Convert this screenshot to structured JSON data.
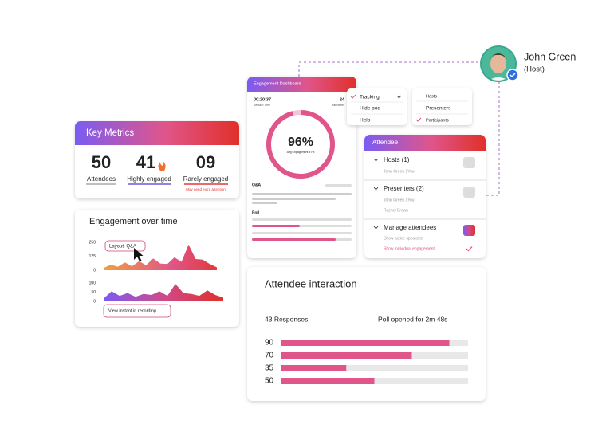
{
  "profile": {
    "name": "John Green",
    "role": "(Host)"
  },
  "key_metrics": {
    "title": "Key Metrics",
    "items": [
      {
        "value": "50",
        "label": "Attendees"
      },
      {
        "value": "41",
        "label": "Highly engaged"
      },
      {
        "value": "09",
        "label": "Rarely engaged",
        "note": "May need extra attention"
      }
    ]
  },
  "engagement_over_time": {
    "title": "Engagement over time",
    "chart_top": {
      "type": "area",
      "ylim": [
        0,
        250
      ],
      "yticks": [
        0,
        125,
        250
      ],
      "values": [
        20,
        50,
        30,
        70,
        35,
        80,
        45,
        105,
        60,
        55,
        115,
        75,
        230,
        100,
        95,
        55,
        25
      ],
      "tooltip": "Layout: Q&A"
    },
    "chart_bottom": {
      "type": "area",
      "ylim": [
        0,
        100
      ],
      "yticks": [
        0,
        50,
        100
      ],
      "values": [
        15,
        55,
        30,
        45,
        25,
        40,
        35,
        55,
        30,
        95,
        45,
        40,
        30,
        60,
        35,
        20
      ],
      "button": "View instant in recording"
    }
  },
  "dashboard": {
    "title": "Engagement Dashboard",
    "session_time": "00:20:37",
    "session_label": "Session Time",
    "attendees": "24",
    "attendees_label": "Attendees",
    "percent": 96,
    "percent_label": "96%",
    "percent_caption": "Avg Engagement 87%",
    "sections": [
      "Q&A",
      "Poll"
    ]
  },
  "menu_view": [
    "Tracking",
    "Hide pod",
    "Help"
  ],
  "menu_roles": [
    "Hosts",
    "Presenters",
    "Participants"
  ],
  "attendee_panel": {
    "title": "Attendee",
    "groups": [
      {
        "label": "Hosts (1)",
        "items": [
          "John Green | You"
        ]
      },
      {
        "label": "Presenters (2)",
        "items": [
          "John Green | You",
          "Rachel Brown"
        ]
      },
      {
        "label": "Manage attendees",
        "items": [
          "Show active speakers",
          "Show individual engagement"
        ]
      }
    ]
  },
  "interaction": {
    "title": "Attendee interaction",
    "responses": "43 Responses",
    "poll": "Poll opened for 2m 48s",
    "xlim": [
      0,
      100
    ],
    "values": [
      90,
      70,
      35,
      50
    ],
    "color": "#e0558a"
  }
}
